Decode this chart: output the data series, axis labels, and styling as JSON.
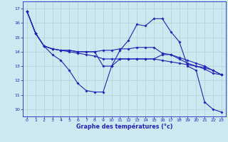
{
  "title": "Graphe des températures (°c)",
  "bg": "#cce8f0",
  "grid_color": "#aacccc",
  "lc": "#2222bb",
  "x": [
    0,
    1,
    2,
    3,
    4,
    5,
    6,
    7,
    8,
    9,
    10,
    11,
    12,
    13,
    14,
    15,
    16,
    17,
    18,
    19,
    20,
    21,
    22,
    23
  ],
  "s1": [
    16.8,
    15.3,
    14.4,
    13.8,
    13.4,
    12.7,
    11.8,
    11.3,
    11.2,
    11.2,
    13.0,
    14.1,
    14.8,
    15.9,
    15.8,
    16.3,
    16.3,
    15.4,
    14.7,
    13.0,
    12.7,
    10.5,
    10.0,
    9.8
  ],
  "s2": [
    16.8,
    15.3,
    14.4,
    14.2,
    14.1,
    14.0,
    13.9,
    13.8,
    13.7,
    13.5,
    13.5,
    13.5,
    13.5,
    13.5,
    13.5,
    13.5,
    13.4,
    13.3,
    13.2,
    13.1,
    13.0,
    12.9,
    12.7,
    12.4
  ],
  "s3": [
    16.8,
    15.3,
    14.4,
    14.2,
    14.1,
    14.1,
    14.0,
    14.0,
    14.0,
    14.1,
    14.1,
    14.2,
    14.2,
    14.3,
    14.3,
    14.3,
    13.9,
    13.8,
    13.6,
    13.4,
    13.2,
    13.0,
    12.7,
    12.4
  ],
  "s4": [
    16.8,
    15.3,
    14.4,
    14.2,
    14.1,
    14.1,
    14.0,
    14.0,
    14.0,
    13.0,
    13.0,
    13.5,
    13.5,
    13.5,
    13.5,
    13.5,
    13.8,
    13.8,
    13.5,
    13.2,
    13.0,
    12.8,
    12.5,
    12.4
  ],
  "ylim": [
    9.5,
    17.5
  ],
  "yticks": [
    10,
    11,
    12,
    13,
    14,
    15,
    16,
    17
  ],
  "xlim": [
    -0.5,
    23.5
  ],
  "xticks": [
    0,
    1,
    2,
    3,
    4,
    5,
    6,
    7,
    8,
    9,
    10,
    11,
    12,
    13,
    14,
    15,
    16,
    17,
    18,
    19,
    20,
    21,
    22,
    23
  ]
}
